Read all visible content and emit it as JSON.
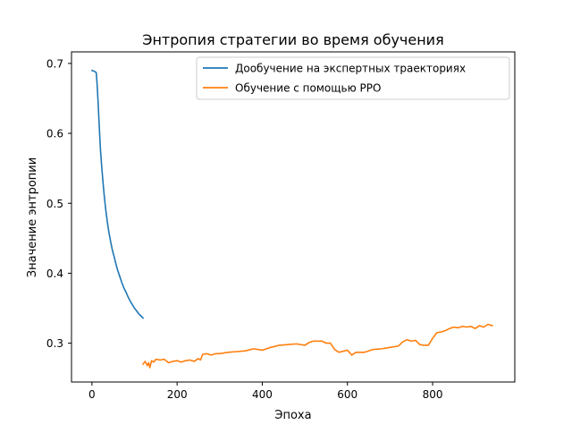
{
  "chart_data": {
    "type": "line",
    "title": "Энтропия стратегии во время обучения",
    "xlabel": "Эпоха",
    "ylabel": "Значение энтропии",
    "xlim": [
      -48,
      993
    ],
    "ylim": [
      0.2445,
      0.7165
    ],
    "xticks": [
      0,
      200,
      400,
      600,
      800
    ],
    "yticks": [
      0.3,
      0.4,
      0.5,
      0.6,
      0.7
    ],
    "ytick_labels": [
      "0.3",
      "0.4",
      "0.5",
      "0.6",
      "0.7"
    ],
    "grid": false,
    "legend_position": "top-right",
    "series": [
      {
        "name": "Дообучение на экспертных траекториях",
        "color": "#1f77b4",
        "x": [
          0,
          5,
          10,
          12,
          14,
          16,
          18,
          20,
          23,
          26,
          29,
          32,
          36,
          40,
          44,
          48,
          52,
          56,
          60,
          65,
          70,
          75,
          80,
          85,
          90,
          95,
          100,
          105,
          110,
          115,
          120
        ],
        "y": [
          0.69,
          0.689,
          0.687,
          0.672,
          0.65,
          0.625,
          0.6,
          0.577,
          0.552,
          0.53,
          0.51,
          0.493,
          0.474,
          0.458,
          0.445,
          0.433,
          0.424,
          0.414,
          0.405,
          0.396,
          0.387,
          0.379,
          0.373,
          0.366,
          0.36,
          0.355,
          0.35,
          0.346,
          0.342,
          0.339,
          0.336
        ]
      },
      {
        "name": "Обучение с помощью PPO",
        "color": "#ff7f0e",
        "x": [
          120,
          125,
          130,
          133,
          136,
          140,
          145,
          150,
          160,
          170,
          180,
          190,
          200,
          210,
          220,
          230,
          240,
          250,
          255,
          260,
          270,
          280,
          290,
          300,
          320,
          340,
          360,
          380,
          400,
          420,
          440,
          460,
          480,
          500,
          510,
          520,
          540,
          550,
          560,
          570,
          580,
          600,
          610,
          620,
          640,
          660,
          680,
          700,
          720,
          730,
          740,
          750,
          760,
          770,
          780,
          790,
          800,
          810,
          820,
          830,
          840,
          850,
          860,
          870,
          880,
          890,
          900,
          910,
          920,
          930,
          940
        ],
        "y": [
          0.27,
          0.274,
          0.268,
          0.272,
          0.265,
          0.275,
          0.273,
          0.277,
          0.276,
          0.277,
          0.272,
          0.274,
          0.275,
          0.273,
          0.275,
          0.276,
          0.274,
          0.278,
          0.276,
          0.284,
          0.285,
          0.283,
          0.285,
          0.285,
          0.287,
          0.288,
          0.289,
          0.292,
          0.29,
          0.294,
          0.297,
          0.298,
          0.299,
          0.297,
          0.301,
          0.303,
          0.303,
          0.3,
          0.3,
          0.291,
          0.287,
          0.29,
          0.283,
          0.287,
          0.287,
          0.291,
          0.292,
          0.294,
          0.296,
          0.302,
          0.305,
          0.303,
          0.304,
          0.298,
          0.297,
          0.297,
          0.307,
          0.315,
          0.316,
          0.318,
          0.321,
          0.323,
          0.322,
          0.324,
          0.323,
          0.324,
          0.321,
          0.325,
          0.323,
          0.327,
          0.325
        ]
      }
    ]
  }
}
